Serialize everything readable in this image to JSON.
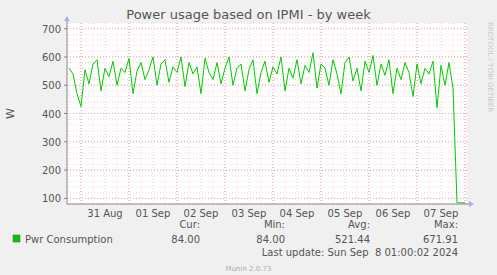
{
  "chart_data": {
    "type": "line",
    "title": "Power usage based on IPMI - by week",
    "y_label": "W",
    "categories": [
      null,
      null,
      null,
      null,
      null,
      null,
      null,
      null,
      null,
      "31 Aug",
      null,
      null,
      null,
      null,
      null,
      null,
      null,
      null,
      null,
      null,
      null,
      "01 Sep",
      null,
      null,
      null,
      null,
      null,
      null,
      null,
      null,
      null,
      null,
      null,
      "02 Sep",
      null,
      null,
      null,
      null,
      null,
      null,
      null,
      null,
      null,
      null,
      null,
      "03 Sep",
      null,
      null,
      null,
      null,
      null,
      null,
      null,
      null,
      null,
      null,
      null,
      "04 Sep",
      null,
      null,
      null,
      null,
      null,
      null,
      null,
      null,
      null,
      null,
      null,
      "05 Sep",
      null,
      null,
      null,
      null,
      null,
      null,
      null,
      null,
      null,
      null,
      null,
      "06 Sep",
      null,
      null,
      null,
      null,
      null,
      null,
      null,
      null,
      null,
      null,
      null,
      "07 Sep",
      null,
      null,
      null,
      null,
      null,
      null
    ],
    "series": [
      {
        "name": "Pwr Consumption",
        "color": "#00cc00",
        "values": [
          560,
          540,
          470,
          425,
          555,
          505,
          575,
          590,
          480,
          560,
          530,
          585,
          500,
          560,
          545,
          595,
          470,
          550,
          580,
          520,
          555,
          600,
          500,
          575,
          590,
          510,
          565,
          545,
          600,
          495,
          580,
          540,
          565,
          470,
          595,
          545,
          520,
          580,
          505,
          560,
          600,
          500,
          560,
          575,
          480,
          555,
          590,
          470,
          545,
          585,
          510,
          565,
          540,
          600,
          480,
          560,
          525,
          590,
          505,
          570,
          545,
          615,
          490,
          575,
          560,
          500,
          590,
          540,
          470,
          580,
          600,
          515,
          560,
          480,
          585,
          545,
          605,
          500,
          575,
          535,
          590,
          470,
          560,
          520,
          580,
          545,
          460,
          575,
          505,
          560,
          540,
          585,
          420,
          570,
          500,
          580,
          490,
          84,
          84,
          84
        ]
      }
    ],
    "ylim": [
      80,
      720
    ],
    "yticks": [
      100,
      200,
      300,
      400,
      500,
      600,
      700
    ],
    "grid": true,
    "legend": "bottom",
    "summary": {
      "headers": [
        "Cur:",
        "Min:",
        "Avg:",
        "Max:"
      ],
      "values": [
        "84.00",
        "84.00",
        "521.44",
        "671.91"
      ]
    },
    "last_update": "Last update: Sun Sep  8 01:00:02 2024",
    "footer": "Munin 2.0.73",
    "watermark": "RRDTOOL / TOBI OETIKER"
  }
}
